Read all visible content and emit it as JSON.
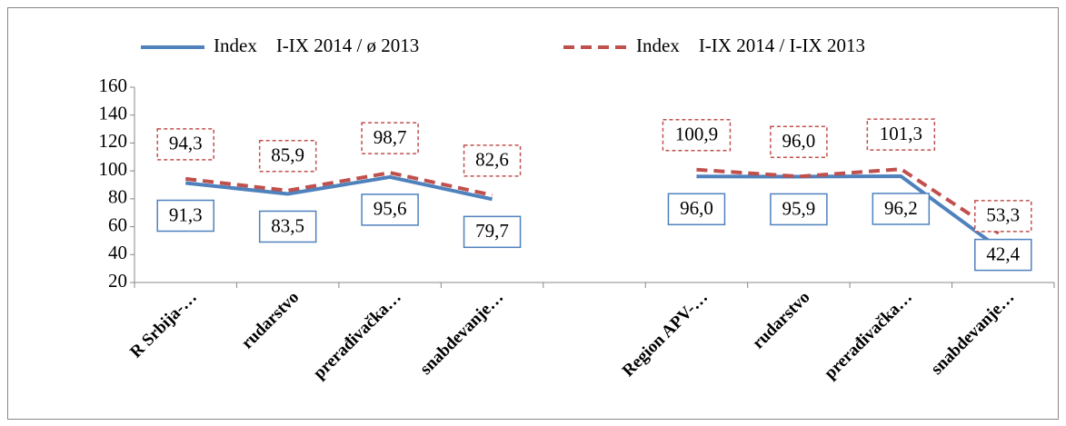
{
  "chart_data": {
    "type": "line",
    "categories": [
      "R Srbija-…",
      "rudarstvo",
      "prerađivačka…",
      "snabdevanje…",
      null,
      "Region APV-…",
      "rudarstvo",
      "prerađivačka…",
      "snabdevanje…"
    ],
    "series": [
      {
        "name": "Index    I-IX 2014 / ø 2013",
        "color": "#4f81bd",
        "dash": false,
        "values": [
          91.3,
          83.5,
          95.6,
          79.7,
          null,
          96.0,
          95.9,
          96.2,
          42.4
        ],
        "value_labels": [
          "91,3",
          "83,5",
          "95,6",
          "79,7",
          null,
          "96,0",
          "95,9",
          "96,2",
          "42,4"
        ]
      },
      {
        "name": "Index    I-IX 2014 / I-IX 2013",
        "color": "#c0504d",
        "dash": true,
        "values": [
          94.3,
          85.9,
          98.7,
          82.6,
          null,
          100.9,
          96.0,
          101.3,
          53.3
        ],
        "value_labels": [
          "94,3",
          "85,9",
          "98,7",
          "82,6",
          null,
          "100,9",
          "96,0",
          "101,3",
          "53,3"
        ]
      }
    ],
    "ylim": [
      20,
      160
    ],
    "yticks": [
      20,
      40,
      60,
      80,
      100,
      120,
      140,
      160
    ],
    "grid": false,
    "legend": "top"
  }
}
